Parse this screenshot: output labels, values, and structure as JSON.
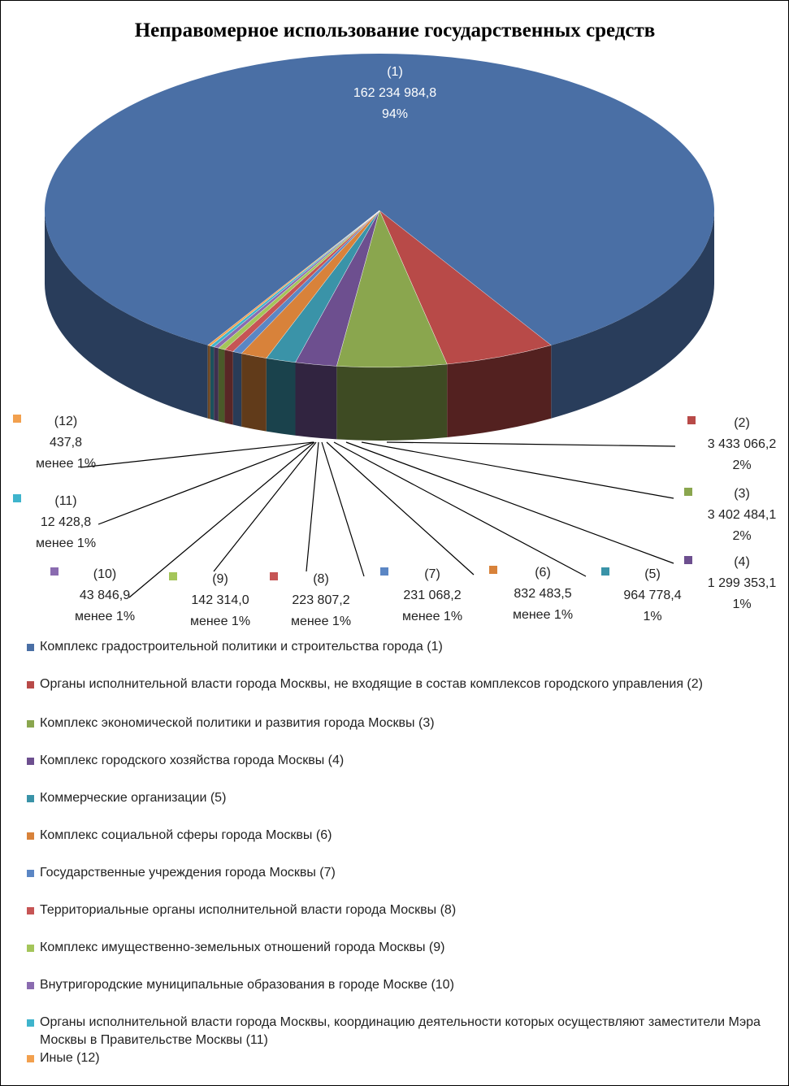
{
  "chart_data": {
    "type": "pie",
    "title": "Неправомерное использование государственных средств",
    "slices": [
      {
        "id": "(1)",
        "value": 162234984.8,
        "value_label": "162 234 984,8",
        "percent_label": "94%",
        "color": "#4a6fa5",
        "legend": "Комплекс градостроительной политики и строительства города (1)"
      },
      {
        "id": "(2)",
        "value": 3433066.2,
        "value_label": "3 433 066,2",
        "percent_label": "2%",
        "color": "#b84a48",
        "legend": "Органы исполнительной власти города Москвы, не входящие в состав комплексов городского управления (2)"
      },
      {
        "id": "(3)",
        "value": 3402484.1,
        "value_label": "3 402 484,1",
        "percent_label": "2%",
        "color": "#8aa64e",
        "legend": "Комплекс экономической политики и развития города Москвы (3)"
      },
      {
        "id": "(4)",
        "value": 1299353.1,
        "value_label": "1 299 353,1",
        "percent_label": "1%",
        "color": "#6d4f8f",
        "legend": "Комплекс городского хозяйства города Москвы (4)"
      },
      {
        "id": "(5)",
        "value": 964778.4,
        "value_label": "964 778,4",
        "percent_label": "1%",
        "color": "#3a93a8",
        "legend": "Коммерческие организации (5)"
      },
      {
        "id": "(6)",
        "value": 832483.5,
        "value_label": "832 483,5",
        "percent_label": "менее 1%",
        "color": "#d8823a",
        "legend": "Комплекс социальной сферы города Москвы (6)"
      },
      {
        "id": "(7)",
        "value": 231068.2,
        "value_label": "231 068,2",
        "percent_label": "менее 1%",
        "color": "#5b86c4",
        "legend": "Государственные учреждения города Москвы (7)"
      },
      {
        "id": "(8)",
        "value": 223807.2,
        "value_label": "223 807,2",
        "percent_label": "менее 1%",
        "color": "#c65555",
        "legend": "Территориальные органы исполнительной власти города Москвы (8)"
      },
      {
        "id": "(9)",
        "value": 142314.0,
        "value_label": "142 314,0",
        "percent_label": "менее 1%",
        "color": "#a4c55a",
        "legend": "Комплекс имущественно-земельных отношений города Москвы (9)"
      },
      {
        "id": "(10)",
        "value": 43846.9,
        "value_label": "43 846,9",
        "percent_label": "менее 1%",
        "color": "#8a6bb0",
        "legend": "Внутригородские муниципальные образования в городе Москве (10)"
      },
      {
        "id": "(11)",
        "value": 12428.8,
        "value_label": "12 428,8",
        "percent_label": "менее 1%",
        "color": "#3fb4cc",
        "legend": "Органы исполнительной власти города Москвы, координацию деятельности которых осуществляют заместители Мэра Москвы в Правительстве Москвы (11)"
      },
      {
        "id": "(12)",
        "value": 437.8,
        "value_label": "437,8",
        "percent_label": "менее 1%",
        "color": "#f2a04e",
        "legend": "Иные (12)"
      }
    ],
    "legend_position": "bottom"
  }
}
